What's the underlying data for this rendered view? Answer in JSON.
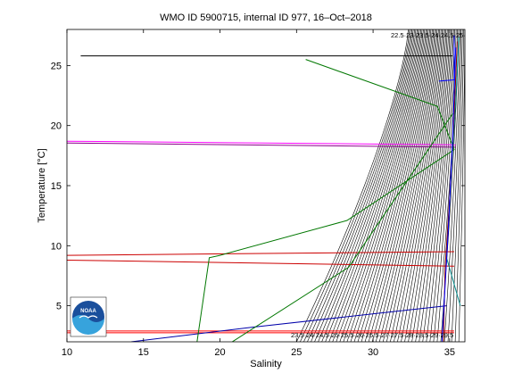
{
  "chart_data": {
    "type": "line",
    "title": "WMO ID 5900715, internal ID 977, 16–Oct–2018",
    "xlabel": "Salinity",
    "ylabel": "Temperature [°C]",
    "xlim": [
      10,
      36
    ],
    "ylim": [
      2,
      28
    ],
    "xticks": [
      10,
      15,
      20,
      25,
      30,
      35
    ],
    "yticks": [
      5,
      10,
      15,
      20,
      25
    ],
    "grid": false,
    "legend": "none",
    "logo_text": "NOAA",
    "density_contours": {
      "count": 46,
      "color": "#000000"
    },
    "series": [
      {
        "color": "#000000",
        "x": [
          10.9,
          35.2
        ],
        "y": [
          25.8,
          25.8
        ]
      },
      {
        "color": "#0000ff",
        "x": [
          34.3,
          35.3,
          35.3
        ],
        "y": [
          23.7,
          23.8,
          27.5
        ]
      },
      {
        "color": "#ff00ff",
        "x": [
          10.0,
          35.4
        ],
        "y": [
          18.7,
          18.4
        ]
      },
      {
        "color": "#880088",
        "x": [
          10.0,
          35.4
        ],
        "y": [
          18.55,
          18.2
        ]
      },
      {
        "color": "#cc0000",
        "x": [
          10.0,
          35.3
        ],
        "y": [
          9.2,
          9.5
        ]
      },
      {
        "color": "#cc0000",
        "x": [
          10.0,
          35.3
        ],
        "y": [
          8.8,
          8.3
        ]
      },
      {
        "color": "#ff0000",
        "x": [
          10.0,
          35.3
        ],
        "y": [
          2.9,
          2.9
        ]
      },
      {
        "color": "#ff0000",
        "x": [
          10.0,
          35.3
        ],
        "y": [
          2.75,
          2.75
        ]
      },
      {
        "color": "#0000aa",
        "x": [
          14.2,
          22.0,
          34.8
        ],
        "y": [
          2.0,
          3.2,
          5.0
        ]
      },
      {
        "color": "#007700",
        "x": [
          25.6,
          34.2,
          35.3,
          28.3,
          20.0,
          19.3,
          18.5
        ],
        "y": [
          25.5,
          21.6,
          18.0,
          12.1,
          9.2,
          9.0,
          2.0
        ]
      },
      {
        "color": "#007700",
        "x": [
          20.8,
          28.4,
          35.2
        ],
        "y": [
          2.0,
          8.2,
          21.0
        ]
      },
      {
        "color": "#008888",
        "x": [
          35.6,
          35.4,
          35.1,
          34.8,
          35.7
        ],
        "y": [
          27.4,
          22.0,
          16.0,
          9.0,
          5.0
        ]
      },
      {
        "color": "#880000",
        "x": [
          35.5,
          35.3,
          35.0,
          34.7,
          34.6
        ],
        "y": [
          27.0,
          21.0,
          14.0,
          8.0,
          2.0
        ]
      },
      {
        "color": "#0000ff",
        "x": [
          35.4,
          35.2,
          34.9,
          34.5
        ],
        "y": [
          26.5,
          19.0,
          11.0,
          2.0
        ]
      }
    ],
    "contour_labels_top": "22.5·23·23.5·24·24.5·25·25.5",
    "contour_labels_bottom": "23.5·24·24.5·25·25.5·26·26.5·27·27.5·28·28.5·29·29.5"
  }
}
